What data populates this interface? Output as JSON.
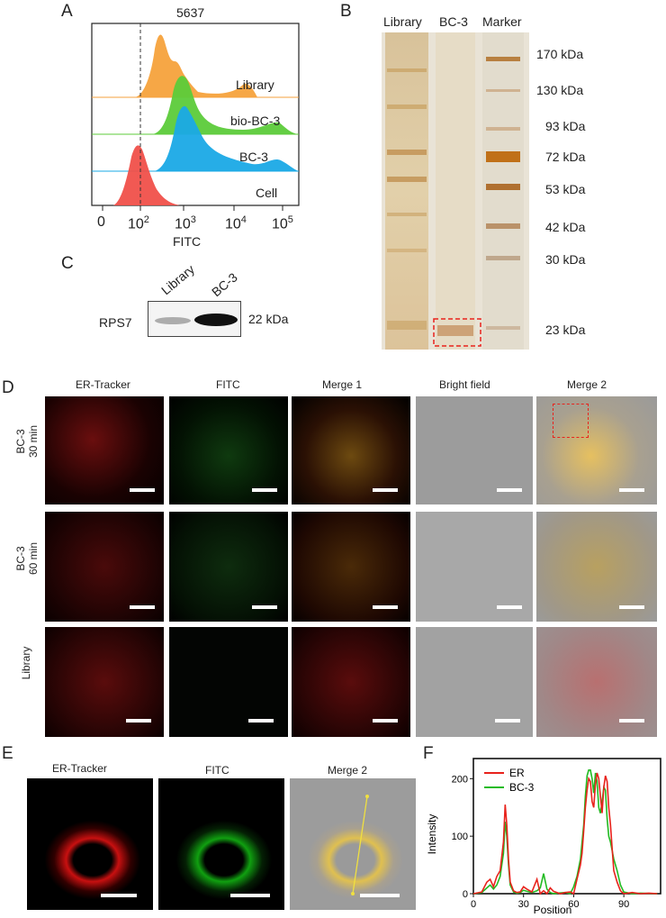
{
  "panels": {
    "A": {
      "label": "A",
      "title": "5637",
      "xlabel": "FITC",
      "ticks": [
        "0",
        "10",
        "10",
        "10",
        "10"
      ],
      "tick_exps": [
        "",
        "2",
        "3",
        "4",
        "5"
      ],
      "tracks": [
        {
          "name": "Library",
          "color": "#f5a23c"
        },
        {
          "name": "bio-BC-3",
          "color": "#5ccb3a"
        },
        {
          "name": "BC-3",
          "color": "#1aa9e6"
        },
        {
          "name": "Cell",
          "color": "#f0504a"
        }
      ]
    },
    "B": {
      "label": "B",
      "lanes": [
        "Library",
        "BC-3",
        "Marker"
      ],
      "markers": [
        "170 kDa",
        "130 kDa",
        "93 kDa",
        "72 kDa",
        "53 kDa",
        "42 kDa",
        "30 kDa",
        "23 kDa"
      ]
    },
    "C": {
      "label": "C",
      "lanes": [
        "Library",
        "BC-3"
      ],
      "protein": "RPS7",
      "size": "22 kDa"
    },
    "D": {
      "label": "D",
      "columns": [
        "ER-Tracker",
        "FITC",
        "Merge 1",
        "Bright field",
        "Merge 2"
      ],
      "rows": [
        {
          "line1": "BC-3",
          "line2": "30 min"
        },
        {
          "line1": "BC-3",
          "line2": "60 min"
        },
        {
          "line1": "Library",
          "line2": ""
        }
      ]
    },
    "E": {
      "label": "E",
      "columns": [
        "ER-Tracker",
        "FITC",
        "Merge 2"
      ]
    },
    "F": {
      "label": "F",
      "legend": [
        "ER",
        "BC-3"
      ],
      "colors": {
        "ER": "#e8231c",
        "BC-3": "#22bb22"
      }
    }
  },
  "chart_data": {
    "type": "line",
    "title": "",
    "xlabel": "Position",
    "ylabel": "Intensity",
    "xlim": [
      0,
      112
    ],
    "ylim": [
      0,
      235
    ],
    "xticks": [
      0,
      30,
      60,
      90
    ],
    "yticks": [
      0,
      100,
      200
    ],
    "series": [
      {
        "name": "ER",
        "x": [
          0,
          5,
          8,
          10,
          12,
          14,
          16,
          18,
          19,
          20,
          21,
          22,
          24,
          26,
          28,
          30,
          32,
          35,
          38,
          40,
          42,
          44,
          46,
          48,
          50,
          52,
          55,
          58,
          60,
          62,
          64,
          65,
          66,
          67,
          68,
          69,
          70,
          71,
          72,
          73,
          74,
          75,
          76,
          77,
          78,
          79,
          80,
          81,
          82,
          83,
          84,
          86,
          88,
          90,
          95,
          100,
          105,
          110
        ],
        "y": [
          0,
          3,
          20,
          25,
          12,
          30,
          40,
          90,
          155,
          120,
          60,
          20,
          5,
          2,
          3,
          12,
          8,
          3,
          25,
          0,
          5,
          0,
          10,
          4,
          2,
          0,
          2,
          3,
          0,
          25,
          50,
          70,
          110,
          150,
          180,
          200,
          195,
          160,
          150,
          190,
          210,
          200,
          170,
          140,
          185,
          205,
          195,
          150,
          120,
          80,
          40,
          20,
          5,
          0,
          2,
          0,
          1,
          0
        ]
      },
      {
        "name": "BC-3",
        "x": [
          0,
          5,
          8,
          10,
          12,
          14,
          16,
          18,
          19,
          20,
          21,
          22,
          24,
          26,
          28,
          30,
          32,
          35,
          38,
          40,
          42,
          44,
          46,
          48,
          50,
          55,
          58,
          60,
          62,
          64,
          66,
          67,
          68,
          69,
          70,
          71,
          72,
          73,
          74,
          75,
          76,
          77,
          78,
          79,
          80,
          81,
          82,
          84,
          86,
          88,
          90,
          95,
          100,
          110
        ],
        "y": [
          0,
          2,
          10,
          15,
          8,
          15,
          30,
          70,
          125,
          100,
          50,
          15,
          3,
          1,
          2,
          6,
          4,
          2,
          5,
          10,
          35,
          8,
          2,
          0,
          1,
          2,
          0,
          12,
          30,
          60,
          120,
          170,
          205,
          215,
          215,
          200,
          175,
          210,
          195,
          150,
          140,
          160,
          185,
          180,
          130,
          100,
          90,
          60,
          40,
          15,
          3,
          0,
          1,
          0
        ]
      }
    ],
    "legend": "top-left"
  }
}
